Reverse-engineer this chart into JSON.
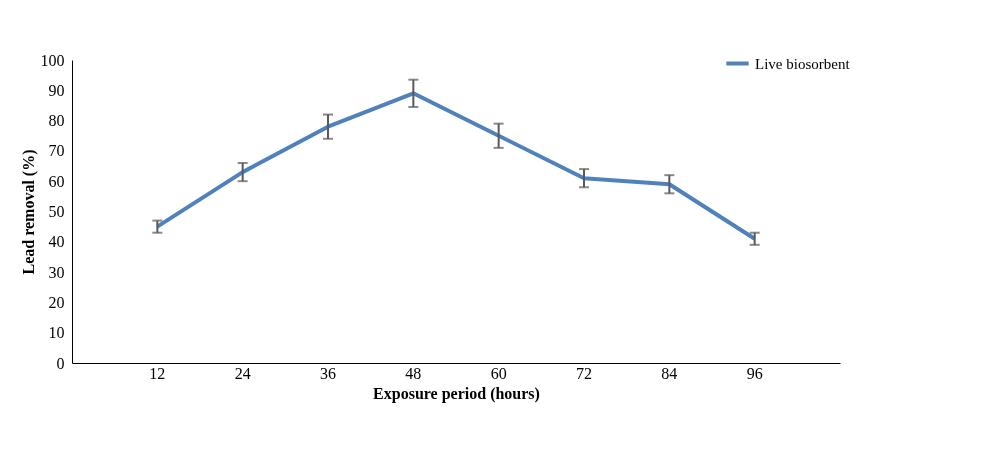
{
  "chart_data": {
    "type": "line",
    "xlabel": "Exposure  period (hours)",
    "ylabel": "Lead  removal (%)",
    "categories": [
      "12",
      "24",
      "36",
      "48",
      "60",
      "72",
      "84",
      "96"
    ],
    "series": [
      {
        "name": "Live biosorbent",
        "color": "#4f81bd",
        "values": [
          45,
          63,
          78,
          89,
          75,
          61,
          59,
          41
        ],
        "errors": [
          2,
          3,
          4,
          4.5,
          4,
          3,
          3,
          2
        ]
      }
    ],
    "ylim": [
      0,
      100
    ],
    "yticks": [
      0,
      10,
      20,
      30,
      40,
      50,
      60,
      70,
      80,
      90,
      100
    ],
    "grid": false,
    "legend": "top right",
    "marker": "none",
    "line_style": "solid"
  }
}
